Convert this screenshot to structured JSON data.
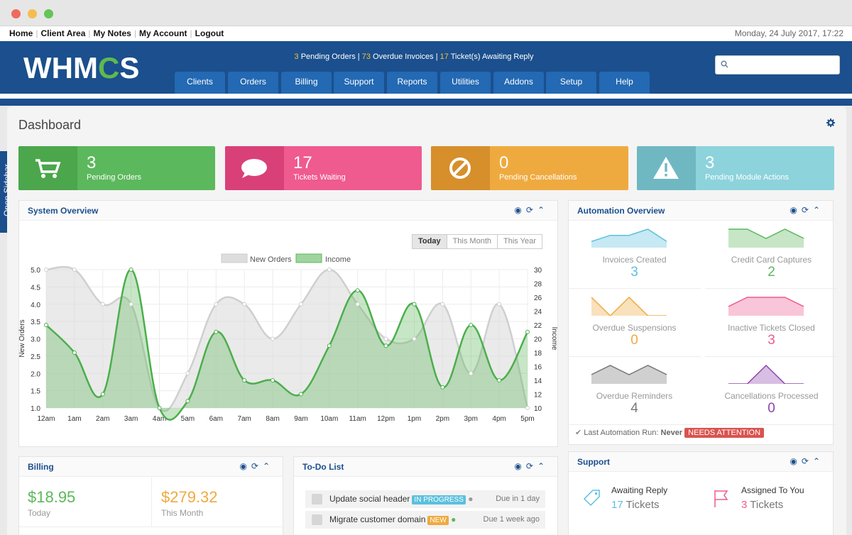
{
  "topnav": {
    "links": [
      "Home",
      "Client Area",
      "My Notes",
      "My Account",
      "Logout"
    ],
    "date": "Monday, 24 July 2017, 17:22"
  },
  "header": {
    "logo_pre": "WHM",
    "logo_gear": "C",
    "logo_post": "S",
    "alerts": {
      "pending_orders_num": "3",
      "pending_orders_label": "Pending Orders",
      "overdue_num": "73",
      "overdue_label": "Overdue Invoices",
      "tickets_num": "17",
      "tickets_label": "Ticket(s) Awaiting Reply"
    },
    "nav": [
      "Clients",
      "Orders",
      "Billing",
      "Support",
      "Reports",
      "Utilities",
      "Addons",
      "Setup",
      "Help"
    ],
    "search_icon": "search-icon"
  },
  "sidebar_tab": "Open Sidebar",
  "page_title": "Dashboard",
  "stats": [
    {
      "num": "3",
      "label": "Pending Orders",
      "color": "#5cb85c",
      "dark": "#4ca64c",
      "icon": "cart-icon"
    },
    {
      "num": "17",
      "label": "Tickets Waiting",
      "color": "#ef5a8f",
      "dark": "#d94078",
      "icon": "speech-bubble-icon"
    },
    {
      "num": "0",
      "label": "Pending Cancellations",
      "color": "#efaa3f",
      "dark": "#d68f2b",
      "icon": "ban-icon"
    },
    {
      "num": "3",
      "label": "Pending Module Actions",
      "color": "#8dd3dc",
      "dark": "#6fb8c2",
      "icon": "warning-icon"
    }
  ],
  "system_overview": {
    "title": "System Overview",
    "ranges": [
      "Today",
      "This Month",
      "This Year"
    ],
    "active_range": "Today"
  },
  "chart_data": {
    "type": "area",
    "x": [
      "12am",
      "1am",
      "2am",
      "3am",
      "4am",
      "5am",
      "6am",
      "7am",
      "8am",
      "9am",
      "10am",
      "11am",
      "12pm",
      "1pm",
      "2pm",
      "3pm",
      "4pm",
      "5pm"
    ],
    "series": [
      {
        "name": "New Orders",
        "axis": "left",
        "values": [
          5.0,
          5.0,
          4.0,
          4.0,
          1.0,
          2.0,
          4.0,
          4.0,
          3.0,
          4.0,
          5.0,
          4.0,
          3.0,
          3.0,
          4.0,
          2.0,
          4.0,
          1.0
        ],
        "color": "#dddddd"
      },
      {
        "name": "Income",
        "axis": "right",
        "values": [
          22,
          18,
          12,
          30,
          10,
          11,
          21,
          14,
          14,
          12,
          19,
          27,
          19,
          25,
          13,
          22,
          14,
          21
        ],
        "color": "#5cb85c"
      }
    ],
    "ylabel": "New Orders",
    "y2label": "Income",
    "ylim": [
      1.0,
      5.0
    ],
    "y2lim": [
      10,
      30
    ],
    "yticks": [
      "1.0",
      "1.5",
      "2.0",
      "2.5",
      "3.0",
      "3.5",
      "4.0",
      "4.5",
      "5.0"
    ],
    "y2ticks": [
      "10",
      "12",
      "14",
      "16",
      "18",
      "20",
      "22",
      "24",
      "26",
      "28",
      "30"
    ],
    "legend": "top-center",
    "grid": true
  },
  "automation": {
    "title": "Automation Overview",
    "cells": [
      {
        "label": "Invoices Created",
        "value": "3",
        "color": "#5bc0de",
        "spark": [
          1,
          2,
          2,
          3,
          1
        ]
      },
      {
        "label": "Credit Card Captures",
        "value": "2",
        "color": "#5cb85c",
        "spark": [
          2,
          2,
          1,
          2,
          1
        ]
      },
      {
        "label": "Overdue Suspensions",
        "value": "0",
        "color": "#efaa3f",
        "spark": [
          2,
          0,
          2,
          0,
          0
        ]
      },
      {
        "label": "Inactive Tickets Closed",
        "value": "3",
        "color": "#ef5a8f",
        "spark": [
          1,
          2,
          2,
          2,
          1
        ]
      },
      {
        "label": "Overdue Reminders",
        "value": "4",
        "color": "#777777",
        "spark": [
          1,
          2,
          1,
          2,
          1
        ]
      },
      {
        "label": "Cancellations Processed",
        "value": "0",
        "color": "#8e44ad",
        "spark": [
          0,
          0,
          2,
          0,
          0
        ]
      }
    ],
    "last_run_label": "Last Automation Run:",
    "last_run_value": "Never",
    "last_run_badge": "NEEDS ATTENTION"
  },
  "billing": {
    "title": "Billing",
    "today_value": "$18.95",
    "today_label": "Today",
    "month_value": "$279.32",
    "month_label": "This Month"
  },
  "todo": {
    "title": "To-Do List",
    "items": [
      {
        "text": "Update social header",
        "tag": "IN PROGRESS",
        "tag_color": "#5bc0de",
        "due": "Due in 1 day"
      },
      {
        "text": "Migrate customer domain",
        "tag": "NEW",
        "tag_color": "#efaa3f",
        "due": "Due 1 week ago"
      }
    ]
  },
  "support": {
    "title": "Support",
    "awaiting_label": "Awaiting Reply",
    "awaiting_value": "17",
    "awaiting_unit": "Tickets",
    "assigned_label": "Assigned To You",
    "assigned_value": "3",
    "assigned_unit": "Tickets"
  }
}
